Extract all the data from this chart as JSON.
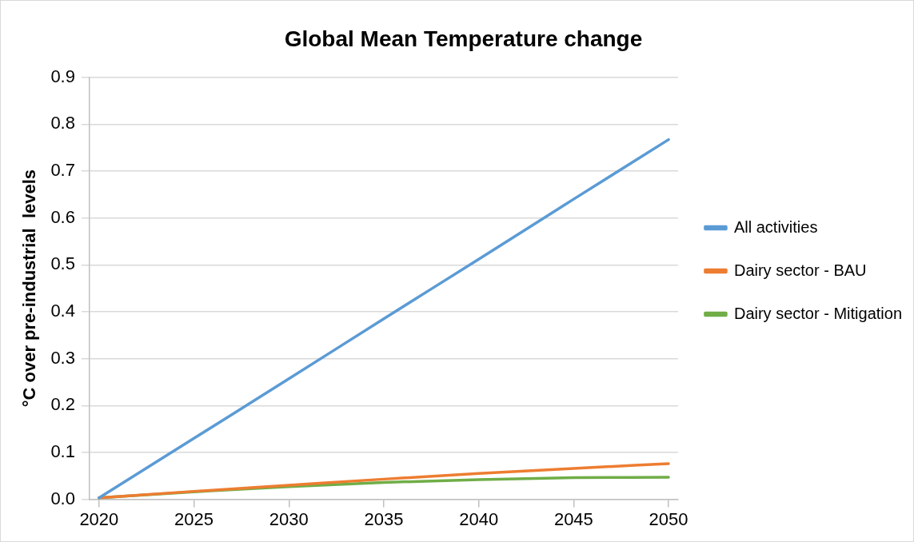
{
  "chart_data": {
    "type": "line",
    "title": "Global Mean Temperature change",
    "ylabel": "°C over pre-industrial  levels",
    "xlim": [
      2019.5,
      2050.5
    ],
    "xticks": [
      2020,
      2025,
      2030,
      2035,
      2040,
      2045,
      2050
    ],
    "ylim": [
      0,
      0.9
    ],
    "yticks": [
      {
        "value": 0,
        "label": "0.0"
      },
      {
        "value": 0.1,
        "label": "0.1"
      },
      {
        "value": 0.2,
        "label": "0.2"
      },
      {
        "value": 0.3,
        "label": "0.3"
      },
      {
        "value": 0.4,
        "label": "0.4"
      },
      {
        "value": 0.5,
        "label": "0.5"
      },
      {
        "value": 0.6,
        "label": "0.6"
      },
      {
        "value": 0.7,
        "label": "0.7"
      },
      {
        "value": 0.8,
        "label": "0.8"
      },
      {
        "value": 0.9,
        "label": "0.9"
      }
    ],
    "x": [
      2020,
      2025,
      2030,
      2035,
      2040,
      2045,
      2050
    ],
    "series": [
      {
        "name": "All activities",
        "color": "#5b9bd5",
        "values": [
          0.003,
          0.13,
          0.257,
          0.385,
          0.512,
          0.64,
          0.767
        ]
      },
      {
        "name": "Dairy sector - BAU",
        "color": "#ed7d31",
        "values": [
          0.003,
          0.017,
          0.03,
          0.043,
          0.055,
          0.066,
          0.076
        ]
      },
      {
        "name": "Dairy sector - Mitigation",
        "color": "#70ad47",
        "values": [
          0.003,
          0.016,
          0.027,
          0.036,
          0.042,
          0.046,
          0.047
        ]
      }
    ],
    "grid": "y",
    "legend": "right",
    "marker": "none",
    "line_style": "solid"
  }
}
